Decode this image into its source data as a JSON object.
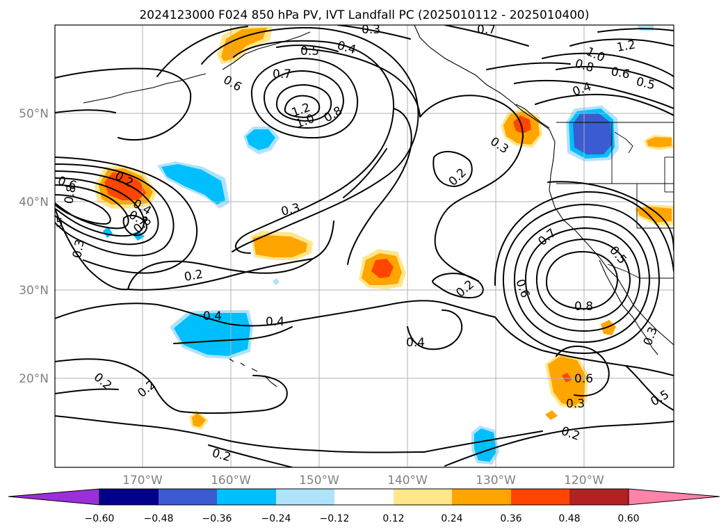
{
  "title": "2024123000 F024 850 hPa PV, IVT Landfall PC (2025010112 - 2025010400)",
  "map": {
    "lat_labels": [
      "50°N",
      "40°N",
      "30°N",
      "20°N"
    ],
    "lon_labels": [
      "170°W",
      "160°W",
      "150°W",
      "140°W",
      "130°W",
      "120°W"
    ],
    "gridlines": "on",
    "projection": "PlateCarree"
  },
  "colorbar": {
    "ticks": [
      "−0.60",
      "−0.48",
      "−0.36",
      "−0.24",
      "−0.12",
      "0.12",
      "0.24",
      "0.36",
      "0.48",
      "0.60"
    ],
    "colors": {
      "below": "#9b30d9",
      "neg_060": "#00008b",
      "neg_048": "#3a5bd1",
      "neg_036": "#00bfff",
      "neg_024": "#afe3fb",
      "neutral": "#ffffff",
      "pos_012": "#ffe78a",
      "pos_024": "#ffa500",
      "pos_036": "#ff4500",
      "pos_048": "#b22222",
      "above": "#ff82a9"
    }
  },
  "contour_labels": [
    {
      "id": "l1",
      "text": "0.3"
    },
    {
      "id": "l2",
      "text": "0.7"
    },
    {
      "id": "l3",
      "text": "0.5"
    },
    {
      "id": "l4",
      "text": "0.4"
    },
    {
      "id": "l5",
      "text": "0.7"
    },
    {
      "id": "l6",
      "text": "0.6"
    },
    {
      "id": "l7",
      "text": "1.2"
    },
    {
      "id": "l8",
      "text": "1.0"
    },
    {
      "id": "l9",
      "text": "0.8"
    },
    {
      "id": "l10",
      "text": "1.0"
    },
    {
      "id": "l11",
      "text": "1.2"
    },
    {
      "id": "l12",
      "text": "0.8"
    },
    {
      "id": "l13",
      "text": "0.6"
    },
    {
      "id": "l14",
      "text": "0.5"
    },
    {
      "id": "l15",
      "text": "0.4"
    },
    {
      "id": "l16",
      "text": "0.3"
    },
    {
      "id": "l17",
      "text": "0.2"
    },
    {
      "id": "l18",
      "text": "0.2"
    },
    {
      "id": "l19",
      "text": "0.6"
    },
    {
      "id": "l20",
      "text": "0.8"
    },
    {
      "id": "l21",
      "text": "0.4"
    },
    {
      "id": "l22",
      "text": "0.7"
    },
    {
      "id": "l23",
      "text": "0.8"
    },
    {
      "id": "l24",
      "text": "5"
    },
    {
      "id": "l25",
      "text": "0.3"
    },
    {
      "id": "l26",
      "text": "0.3"
    },
    {
      "id": "l27",
      "text": "0.2"
    },
    {
      "id": "l28",
      "text": "0.2"
    },
    {
      "id": "l29",
      "text": "0.4"
    },
    {
      "id": "l30",
      "text": "0.4"
    },
    {
      "id": "l31",
      "text": "0.4"
    },
    {
      "id": "l32",
      "text": "0.7"
    },
    {
      "id": "l33",
      "text": "0.5"
    },
    {
      "id": "l34",
      "text": "0.6"
    },
    {
      "id": "l35",
      "text": "0.8"
    },
    {
      "id": "l36",
      "text": "0.3"
    },
    {
      "id": "l37",
      "text": "0.6"
    },
    {
      "id": "l38",
      "text": "0.3"
    },
    {
      "id": "l39",
      "text": "0.2"
    },
    {
      "id": "l40",
      "text": "0.5"
    },
    {
      "id": "l41",
      "text": "0.2"
    },
    {
      "id": "l42",
      "text": "0.2"
    },
    {
      "id": "l43",
      "text": "0.2"
    }
  ]
}
